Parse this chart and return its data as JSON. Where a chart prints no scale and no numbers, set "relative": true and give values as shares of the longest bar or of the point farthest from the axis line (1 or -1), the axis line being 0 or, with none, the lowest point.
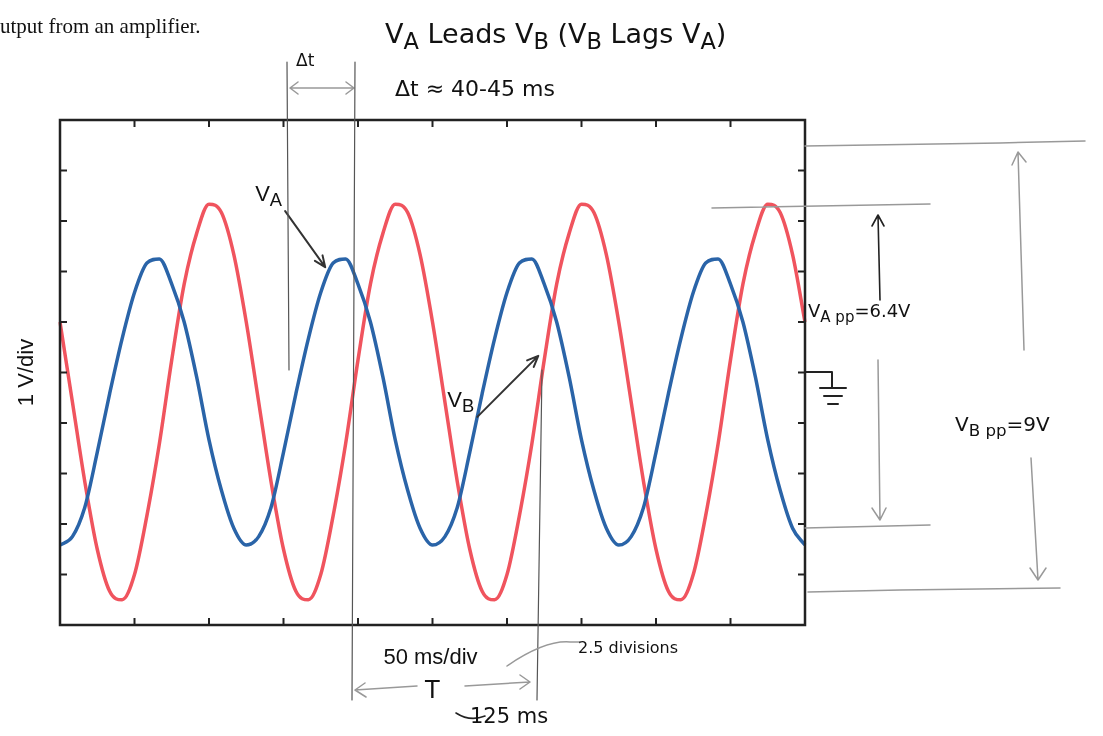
{
  "chart_data": {
    "type": "line",
    "relative": true,
    "marker": "none",
    "xlabel": "50 ms/div",
    "ylabel": "1 V/div",
    "categories": [
      null,
      null,
      null,
      null,
      null,
      null,
      null,
      null,
      null,
      null,
      null,
      null,
      null,
      null,
      null,
      null,
      null,
      null,
      null,
      null,
      null,
      null,
      null,
      null,
      null,
      null,
      null,
      null,
      null,
      null,
      null,
      null,
      null,
      null,
      null,
      null,
      null,
      null,
      null,
      null,
      null,
      null,
      null,
      null,
      null,
      null,
      null,
      null,
      null,
      null,
      null,
      null,
      null,
      null,
      null,
      null,
      null,
      null,
      null,
      null,
      null
    ],
    "series": [
      {
        "name": "V$_{A}$",
        "color": "#2a64a8",
        "values": [
          0.19,
          0.21,
          0.28,
          0.41,
          0.55,
          0.68,
          0.79,
          0.86,
          0.87,
          0.81,
          0.72,
          0.59,
          0.44,
          0.32,
          0.23,
          0.19,
          0.21,
          0.28,
          0.41,
          0.55,
          0.68,
          0.79,
          0.86,
          0.87,
          0.81,
          0.72,
          0.59,
          0.44,
          0.32,
          0.23,
          0.19,
          0.21,
          0.28,
          0.41,
          0.55,
          0.68,
          0.79,
          0.86,
          0.87,
          0.81,
          0.72,
          0.59,
          0.44,
          0.32,
          0.23,
          0.19,
          0.21,
          0.28,
          0.41,
          0.55,
          0.68,
          0.79,
          0.86,
          0.87,
          0.81,
          0.72,
          0.59,
          0.44,
          0.32,
          0.23,
          0.19
        ]
      },
      {
        "name": "V$_{B}$",
        "color": "#f0545e",
        "values": [
          0.72,
          0.53,
          0.34,
          0.18,
          0.08,
          0.06,
          0.12,
          0.26,
          0.43,
          0.63,
          0.81,
          0.93,
          1.0,
          0.98,
          0.88,
          0.72,
          0.53,
          0.34,
          0.18,
          0.08,
          0.06,
          0.12,
          0.26,
          0.43,
          0.63,
          0.81,
          0.93,
          1.0,
          0.98,
          0.88,
          0.72,
          0.53,
          0.34,
          0.18,
          0.08,
          0.06,
          0.12,
          0.26,
          0.43,
          0.63,
          0.81,
          0.93,
          1.0,
          0.98,
          0.88,
          0.72,
          0.53,
          0.34,
          0.18,
          0.08,
          0.06,
          0.12,
          0.26,
          0.43,
          0.63,
          0.81,
          0.93,
          1.0,
          0.98,
          0.88,
          0.72
        ]
      }
    ],
    "annotations": [
      "utput from an amplifier.",
      "V$_{A}$ Leads V$_{B}$  (V$_{B}$ Lags V$_{A}$)",
      "Δt",
      "Δt ≈ 40-45 ms",
      "V$_{A pp}$=6.4V",
      "V$_{B pp}$=9V",
      "2.5 divisions",
      "T",
      "125 ms"
    ]
  }
}
